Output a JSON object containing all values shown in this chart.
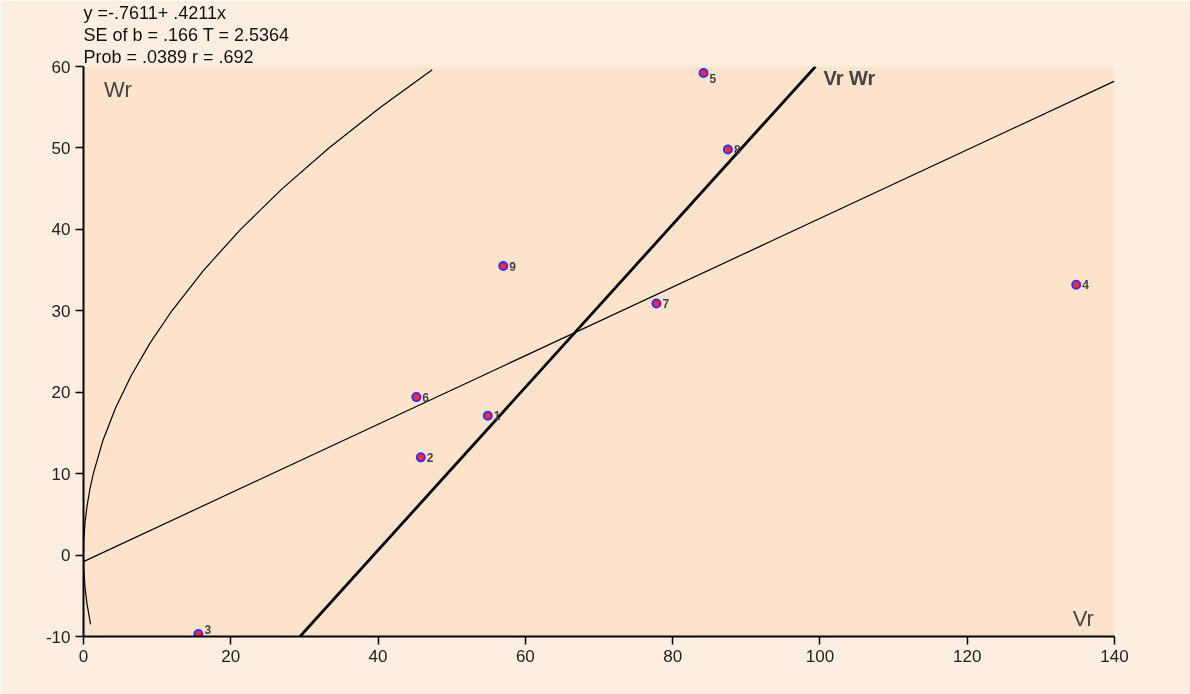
{
  "chart_data": {
    "type": "scatter",
    "xlabel": "Vr",
    "ylabel": "Wr",
    "xlim": [
      0,
      140
    ],
    "xticks": [
      0,
      20,
      40,
      60,
      80,
      100,
      120,
      140
    ],
    "ylim": [
      -10,
      60
    ],
    "yticks": [
      -10,
      0,
      10,
      20,
      30,
      40,
      50,
      60
    ],
    "grid": false,
    "marker": "circle",
    "series": [
      {
        "color": "#ff2a2a",
        "x": [
          54.9,
          45.8,
          15.6,
          134.8,
          84.2,
          45.2,
          77.8,
          87.5,
          57.0
        ],
        "values": [
          17.1,
          12.0,
          -9.7,
          33.2,
          59.2,
          19.4,
          30.9,
          49.8,
          35.5
        ]
      },
      {
        "type": "line",
        "marker": "none",
        "color": "#000000",
        "x": [
          0,
          140
        ],
        "values": [
          -0.8,
          58.2
        ]
      },
      {
        "type": "line",
        "marker": "none",
        "color": "#000000",
        "x": [
          29.4,
          99.4
        ],
        "values": [
          -10,
          60
        ]
      },
      {
        "type": "line",
        "marker": "none",
        "color": "#000000",
        "x": [
          0.96,
          0.48,
          0.21,
          0.05,
          0,
          0.05,
          0.21,
          0.48,
          0.85,
          1.33,
          2.61,
          4.32,
          6.45,
          9.01,
          12.0,
          16.33,
          21.33,
          27.0,
          33.33,
          40.33,
          47.36
        ],
        "values": [
          -8.5,
          -6,
          -4,
          -2,
          0,
          2,
          4,
          6,
          8,
          10,
          14,
          18,
          22,
          26,
          30,
          35,
          40,
          45,
          50,
          55,
          59.6
        ]
      }
    ],
    "annotations": [
      "y =-.7611+ .4211x",
      "SE of b = .166      T = 2.5364",
      "Prob    = .0389      r = .692",
      {
        "text": "Vr Wr",
        "x": 99.4,
        "y": 60
      },
      {
        "text": "1",
        "x": 54.9,
        "y": 17.1
      },
      {
        "text": "2",
        "x": 45.8,
        "y": 12.0
      },
      {
        "text": "3",
        "x": 15.6,
        "y": -9.7
      },
      {
        "text": "4",
        "x": 134.8,
        "y": 33.2
      },
      {
        "text": "5",
        "x": 84.2,
        "y": 59.2
      },
      {
        "text": "6",
        "x": 45.2,
        "y": 19.4
      },
      {
        "text": "7",
        "x": 77.8,
        "y": 30.9
      },
      {
        "text": "8",
        "x": 87.5,
        "y": 49.8
      },
      {
        "text": "9",
        "x": 57.0,
        "y": 35.5
      }
    ]
  }
}
